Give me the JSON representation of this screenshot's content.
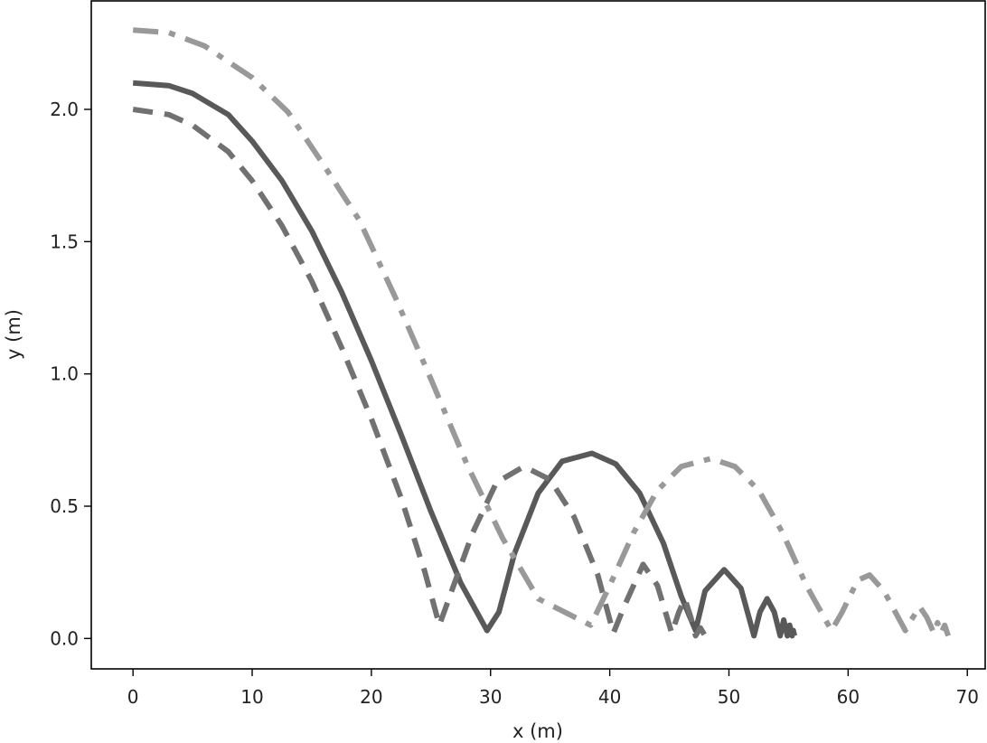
{
  "chart_data": {
    "type": "line",
    "title": "",
    "xlabel": "x (m)",
    "ylabel": "y (m)",
    "xlim": [
      -3.5,
      71.5
    ],
    "ylim": [
      -0.115,
      2.41
    ],
    "xticks": [
      0,
      10,
      20,
      30,
      40,
      50,
      60,
      70
    ],
    "yticks": [
      0.0,
      0.5,
      1.0,
      1.5,
      2.0
    ],
    "xtick_labels": [
      "0",
      "10",
      "20",
      "30",
      "40",
      "50",
      "60",
      "70"
    ],
    "ytick_labels": [
      "0.0",
      "0.5",
      "1.0",
      "1.5",
      "2.0"
    ],
    "grid": false,
    "legend": "none",
    "series": [
      {
        "color": "#595959",
        "style": "solid",
        "points": [
          [
            0,
            2.1
          ],
          [
            3,
            2.09
          ],
          [
            5,
            2.06
          ],
          [
            8,
            1.98
          ],
          [
            10,
            1.88
          ],
          [
            12.5,
            1.73
          ],
          [
            15,
            1.54
          ],
          [
            17.5,
            1.31
          ],
          [
            20,
            1.05
          ],
          [
            22.5,
            0.77
          ],
          [
            25,
            0.48
          ],
          [
            27.5,
            0.21
          ],
          [
            29.7,
            0.03
          ],
          [
            30.7,
            0.1
          ],
          [
            32,
            0.32
          ],
          [
            34,
            0.55
          ],
          [
            36,
            0.67
          ],
          [
            38.5,
            0.7
          ],
          [
            40.5,
            0.66
          ],
          [
            42.5,
            0.55
          ],
          [
            44.5,
            0.36
          ],
          [
            46,
            0.16
          ],
          [
            47.2,
            0.03
          ],
          [
            48,
            0.18
          ],
          [
            49.6,
            0.26
          ],
          [
            51,
            0.19
          ],
          [
            52.1,
            0.01
          ],
          [
            52.6,
            0.1
          ],
          [
            53.2,
            0.15
          ],
          [
            53.8,
            0.1
          ],
          [
            54.3,
            0.01
          ],
          [
            54.6,
            0.07
          ],
          [
            54.9,
            0.01
          ],
          [
            55.1,
            0.05
          ],
          [
            55.3,
            0.01
          ],
          [
            55.4,
            0.03
          ],
          [
            55.5,
            0.01
          ]
        ]
      },
      {
        "color": "#717171",
        "style": "dashed",
        "points": [
          [
            0,
            2.0
          ],
          [
            3,
            1.98
          ],
          [
            5,
            1.94
          ],
          [
            8,
            1.84
          ],
          [
            10,
            1.73
          ],
          [
            12.5,
            1.56
          ],
          [
            15,
            1.35
          ],
          [
            17.5,
            1.1
          ],
          [
            20,
            0.83
          ],
          [
            22.5,
            0.53
          ],
          [
            24.5,
            0.25
          ],
          [
            25.7,
            0.05
          ],
          [
            26.5,
            0.15
          ],
          [
            28.5,
            0.4
          ],
          [
            30.5,
            0.59
          ],
          [
            32.8,
            0.65
          ],
          [
            35,
            0.6
          ],
          [
            37,
            0.46
          ],
          [
            39,
            0.24
          ],
          [
            40.3,
            0.02
          ],
          [
            41.2,
            0.12
          ],
          [
            42.8,
            0.28
          ],
          [
            44,
            0.2
          ],
          [
            45.2,
            0.02
          ],
          [
            45.8,
            0.1
          ],
          [
            46.3,
            0.15
          ],
          [
            46.8,
            0.08
          ],
          [
            47.2,
            0.01
          ],
          [
            47.6,
            0.04
          ],
          [
            48,
            0.01
          ]
        ]
      },
      {
        "color": "#999999",
        "style": "dashdot",
        "points": [
          [
            0,
            2.3
          ],
          [
            3,
            2.29
          ],
          [
            6,
            2.24
          ],
          [
            10,
            2.12
          ],
          [
            13,
            1.99
          ],
          [
            16,
            1.79
          ],
          [
            19,
            1.58
          ],
          [
            22,
            1.29
          ],
          [
            25,
            0.98
          ],
          [
            28,
            0.66
          ],
          [
            31,
            0.38
          ],
          [
            34,
            0.15
          ],
          [
            38.4,
            0.05
          ],
          [
            40,
            0.2
          ],
          [
            42,
            0.4
          ],
          [
            44,
            0.56
          ],
          [
            46,
            0.65
          ],
          [
            48.5,
            0.68
          ],
          [
            50.5,
            0.65
          ],
          [
            52.5,
            0.56
          ],
          [
            54.5,
            0.4
          ],
          [
            56.5,
            0.2
          ],
          [
            58.6,
            0.03
          ],
          [
            59.5,
            0.1
          ],
          [
            60.8,
            0.22
          ],
          [
            61.8,
            0.24
          ],
          [
            63,
            0.18
          ],
          [
            64.8,
            0.03
          ],
          [
            65.3,
            0.07
          ],
          [
            66,
            0.12
          ],
          [
            66.6,
            0.08
          ],
          [
            67.2,
            0.02
          ],
          [
            67.5,
            0.06
          ],
          [
            67.8,
            0.02
          ],
          [
            68.1,
            0.05
          ],
          [
            68.4,
            0.01
          ]
        ]
      }
    ]
  }
}
